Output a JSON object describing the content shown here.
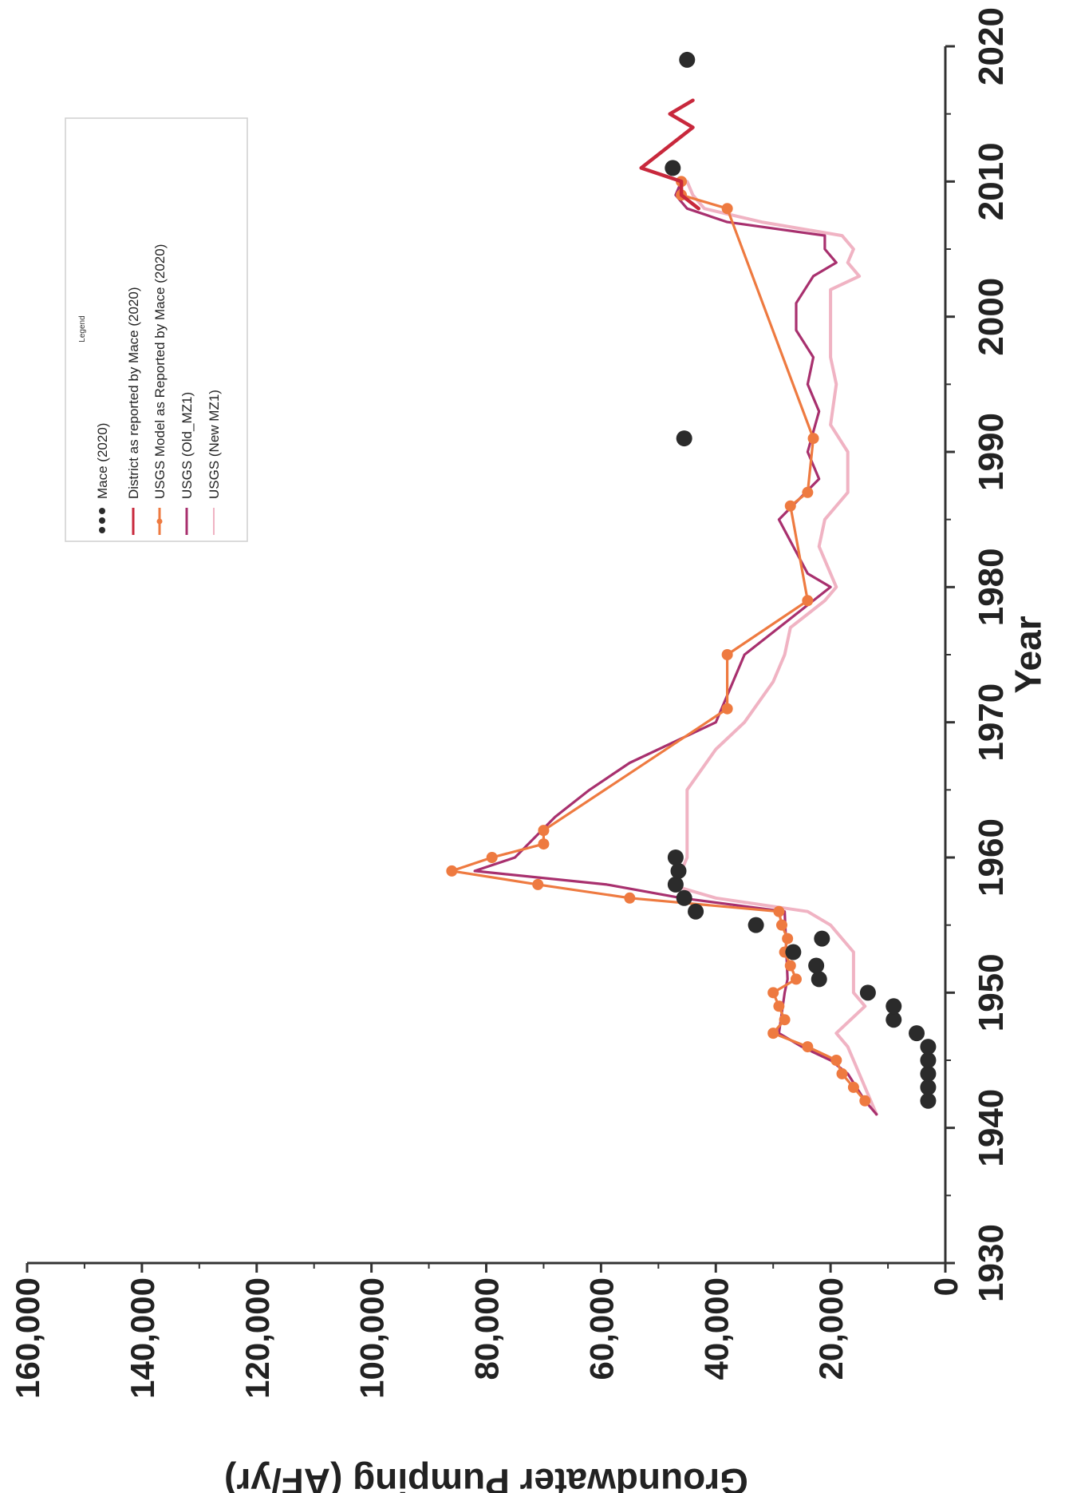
{
  "chart_data": {
    "type": "line",
    "xlabel": "Year",
    "ylabel": "Groundwater Pumping (AF/yr)",
    "xlim": [
      1930,
      2020
    ],
    "ylim": [
      0,
      160000
    ],
    "x_ticks": [
      "1930",
      "1940",
      "1950",
      "1960",
      "1970",
      "1980",
      "1990",
      "2000",
      "2010",
      "2020"
    ],
    "y_ticks": [
      "0",
      "20,000",
      "40,000",
      "60,000",
      "80,000",
      "100,000",
      "120,000",
      "140,000",
      "160,000"
    ],
    "legend_title": "Legend",
    "legend_position": "top-right",
    "series": [
      {
        "name": "Mace (2020)",
        "style": "markers",
        "color": "#2b2b2b",
        "points": [
          [
            1942,
            3000
          ],
          [
            1943,
            3000
          ],
          [
            1944,
            3000
          ],
          [
            1945,
            3000
          ],
          [
            1946,
            3000
          ],
          [
            1947,
            5000
          ],
          [
            1948,
            9000
          ],
          [
            1949,
            9000
          ],
          [
            1950,
            13500
          ],
          [
            1951,
            22000
          ],
          [
            1952,
            22500
          ],
          [
            1953,
            26500
          ],
          [
            1954,
            21500
          ],
          [
            1955,
            33000
          ],
          [
            1956,
            43500
          ],
          [
            1957,
            45500
          ],
          [
            1958,
            47000
          ],
          [
            1959,
            46500
          ],
          [
            1960,
            47000
          ],
          [
            1991,
            45500
          ],
          [
            2011,
            47500
          ],
          [
            2019,
            45000
          ]
        ]
      },
      {
        "name": "District as reported by Mace (2020)",
        "style": "line",
        "color": "#c8283c",
        "points": [
          [
            2008,
            43000
          ],
          [
            2009,
            46000
          ],
          [
            2010,
            46000
          ],
          [
            2011,
            53000
          ],
          [
            2012,
            50000
          ],
          [
            2013,
            47000
          ],
          [
            2014,
            44000
          ],
          [
            2015,
            48000
          ],
          [
            2016,
            44000
          ]
        ]
      },
      {
        "name": "USGS Model as Reported by Mace (2020)",
        "style": "line-markers",
        "color": "#ee7a40",
        "points": [
          [
            1942,
            14000
          ],
          [
            1943,
            16000
          ],
          [
            1944,
            18000
          ],
          [
            1945,
            19000
          ],
          [
            1946,
            24000
          ],
          [
            1947,
            30000
          ],
          [
            1948,
            28000
          ],
          [
            1949,
            29000
          ],
          [
            1950,
            30000
          ],
          [
            1951,
            26000
          ],
          [
            1952,
            27000
          ],
          [
            1953,
            28000
          ],
          [
            1954,
            27500
          ],
          [
            1955,
            28500
          ],
          [
            1956,
            29000
          ],
          [
            1957,
            55000
          ],
          [
            1958,
            71000
          ],
          [
            1959,
            86000
          ],
          [
            1960,
            79000
          ],
          [
            1961,
            70000
          ],
          [
            1962,
            70000
          ],
          [
            1971,
            38000
          ],
          [
            1975,
            38000
          ],
          [
            1979,
            24000
          ],
          [
            1986,
            27000
          ],
          [
            1987,
            24000
          ],
          [
            1991,
            23000
          ],
          [
            2008,
            38000
          ],
          [
            2009,
            46000
          ],
          [
            2010,
            46000
          ]
        ]
      },
      {
        "name": "USGS (Old_MZ1)",
        "style": "line",
        "color": "#a8306e",
        "points": [
          [
            1941,
            12000
          ],
          [
            1942,
            14000
          ],
          [
            1944,
            17000
          ],
          [
            1945,
            20000
          ],
          [
            1946,
            25000
          ],
          [
            1947,
            29000
          ],
          [
            1950,
            28000
          ],
          [
            1951,
            27500
          ],
          [
            1956,
            28000
          ],
          [
            1957,
            46000
          ],
          [
            1958,
            59000
          ],
          [
            1959,
            82000
          ],
          [
            1960,
            75000
          ],
          [
            1963,
            68000
          ],
          [
            1965,
            62000
          ],
          [
            1967,
            55000
          ],
          [
            1970,
            40000
          ],
          [
            1975,
            35000
          ],
          [
            1980,
            20000
          ],
          [
            1981,
            24000
          ],
          [
            1985,
            29000
          ],
          [
            1988,
            22000
          ],
          [
            1990,
            24000
          ],
          [
            1993,
            22000
          ],
          [
            1995,
            24000
          ],
          [
            1997,
            23000
          ],
          [
            1999,
            26000
          ],
          [
            2001,
            26000
          ],
          [
            2003,
            23000
          ],
          [
            2004,
            19000
          ],
          [
            2005,
            21000
          ],
          [
            2006,
            21000
          ],
          [
            2007,
            38000
          ],
          [
            2008,
            45000
          ],
          [
            2009,
            47000
          ],
          [
            2010,
            46000
          ]
        ]
      },
      {
        "name": "USGS (New MZ1)",
        "style": "line",
        "color": "#f0b3c3",
        "points": [
          [
            1941,
            12000
          ],
          [
            1944,
            15000
          ],
          [
            1946,
            17000
          ],
          [
            1947,
            19000
          ],
          [
            1949,
            14000
          ],
          [
            1950,
            16000
          ],
          [
            1953,
            16000
          ],
          [
            1955,
            20000
          ],
          [
            1956,
            24000
          ],
          [
            1957,
            40000
          ],
          [
            1958,
            48000
          ],
          [
            1959,
            46000
          ],
          [
            1960,
            45000
          ],
          [
            1965,
            45000
          ],
          [
            1968,
            40000
          ],
          [
            1970,
            35000
          ],
          [
            1973,
            30000
          ],
          [
            1975,
            28000
          ],
          [
            1977,
            27000
          ],
          [
            1979,
            21000
          ],
          [
            1980,
            19000
          ],
          [
            1983,
            22000
          ],
          [
            1985,
            21000
          ],
          [
            1987,
            17000
          ],
          [
            1990,
            17000
          ],
          [
            1992,
            20000
          ],
          [
            1995,
            19000
          ],
          [
            1997,
            20000
          ],
          [
            2000,
            20000
          ],
          [
            2002,
            20000
          ],
          [
            2003,
            15000
          ],
          [
            2004,
            17000
          ],
          [
            2005,
            16000
          ],
          [
            2006,
            18000
          ],
          [
            2007,
            32000
          ],
          [
            2008,
            42000
          ],
          [
            2009,
            44000
          ],
          [
            2010,
            45000
          ]
        ]
      }
    ]
  }
}
